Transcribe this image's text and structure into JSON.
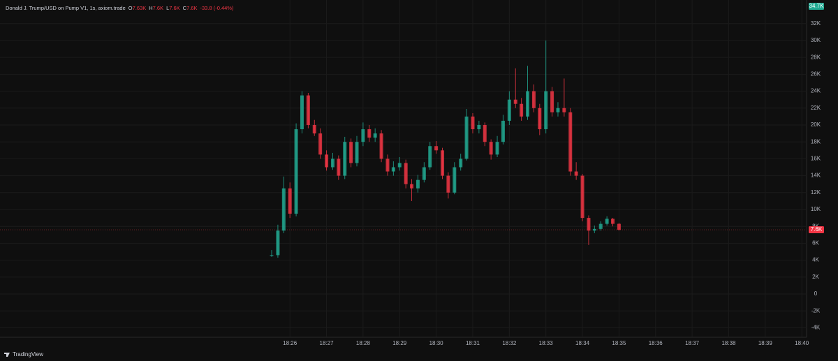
{
  "chart_data": {
    "type": "candlestick",
    "title": "Donald J. Trump/USD on Pump V1, 1s, axiom.trade",
    "ohlc_legend": [
      {
        "label": "O",
        "value": "7.63K"
      },
      {
        "label": "H",
        "value": "7.6K"
      },
      {
        "label": "L",
        "value": "7.6K"
      },
      {
        "label": "C",
        "value": "7.6K"
      }
    ],
    "change": "-33.8 (-0.44%)",
    "top_badge": "34.7K",
    "last_price": {
      "value": 7600,
      "label": "7.6K"
    },
    "footer": "TradingView",
    "up_color": "#22ab94",
    "down_color": "#f23645",
    "grid": true,
    "x": [
      1105.5,
      1105.67,
      1105.83,
      1106,
      1106.17,
      1106.33,
      1106.5,
      1106.67,
      1106.83,
      1107,
      1107.17,
      1107.33,
      1107.5,
      1107.67,
      1107.83,
      1108,
      1108.17,
      1108.33,
      1108.5,
      1108.67,
      1108.83,
      1109,
      1109.17,
      1109.33,
      1109.5,
      1109.67,
      1109.83,
      1110,
      1110.17,
      1110.33,
      1110.5,
      1110.67,
      1110.83,
      1111,
      1111.17,
      1111.33,
      1111.5,
      1111.67,
      1111.83,
      1112,
      1112.17,
      1112.33,
      1112.5,
      1112.67,
      1112.83,
      1113,
      1113.17,
      1113.33,
      1113.5,
      1113.67,
      1113.83,
      1114,
      1114.17,
      1114.33,
      1114.5,
      1114.67,
      1114.83,
      1115
    ],
    "open": [
      4500,
      4600,
      7500,
      12500,
      9500,
      19500,
      23500,
      20000,
      19000,
      16500,
      15000,
      16000,
      14000,
      18000,
      15500,
      18000,
      19500,
      18500,
      19000,
      16000,
      14500,
      15000,
      15500,
      13000,
      12500,
      13500,
      15000,
      17500,
      17000,
      14000,
      12000,
      15000,
      16000,
      21000,
      19500,
      20000,
      18000,
      16500,
      18000,
      20500,
      23000,
      22500,
      21000,
      24000,
      22000,
      19500,
      24000,
      21500,
      22000,
      21500,
      14500,
      14000,
      9000,
      7500,
      7700,
      8300,
      8900,
      8300
    ],
    "high": [
      5200,
      8200,
      13900,
      13200,
      20200,
      24000,
      23800,
      20600,
      19600,
      17000,
      16700,
      16400,
      18600,
      18400,
      18700,
      20300,
      20000,
      19600,
      19400,
      16500,
      15700,
      16200,
      15900,
      13600,
      14100,
      15600,
      18000,
      18100,
      17300,
      14400,
      15600,
      16600,
      21900,
      21400,
      20500,
      20300,
      18300,
      18700,
      21200,
      24000,
      26700,
      23200,
      27000,
      24800,
      22500,
      30000,
      24500,
      22700,
      25500,
      22000,
      15600,
      14200,
      9300,
      8100,
      8600,
      9200,
      9000,
      8400
    ],
    "low": [
      4400,
      4300,
      7200,
      9000,
      9200,
      19000,
      19600,
      18700,
      16000,
      14600,
      14700,
      13500,
      13600,
      15000,
      15100,
      17500,
      18000,
      18000,
      15600,
      14000,
      14000,
      14600,
      12500,
      11000,
      12000,
      13200,
      14700,
      16600,
      13600,
      11300,
      11800,
      14600,
      15800,
      19000,
      19000,
      17500,
      15900,
      16200,
      17700,
      20000,
      22000,
      20500,
      20600,
      21500,
      18800,
      19000,
      21000,
      21000,
      21000,
      14000,
      13500,
      8600,
      5800,
      7200,
      7500,
      8100,
      8000,
      7500
    ],
    "close": [
      4600,
      7500,
      12500,
      9500,
      19500,
      23500,
      20000,
      19000,
      16500,
      15000,
      16000,
      14000,
      18000,
      15500,
      18000,
      19500,
      18500,
      19000,
      16000,
      14500,
      15000,
      15500,
      13000,
      12500,
      13500,
      15000,
      17500,
      17000,
      14000,
      12000,
      15000,
      16000,
      21000,
      19500,
      20000,
      18000,
      16500,
      18000,
      20500,
      23000,
      22500,
      21000,
      24000,
      22000,
      19500,
      24000,
      21500,
      22000,
      21500,
      14500,
      14000,
      9000,
      7500,
      7700,
      8300,
      8900,
      8300,
      7600
    ],
    "xlim": [
      1098.07,
      1120.13
    ],
    "xticks": [
      {
        "value": 1106,
        "label": "18:26"
      },
      {
        "value": 1107,
        "label": "18:27"
      },
      {
        "value": 1108,
        "label": "18:28"
      },
      {
        "value": 1109,
        "label": "18:29"
      },
      {
        "value": 1110,
        "label": "18:30"
      },
      {
        "value": 1111,
        "label": "18:31"
      },
      {
        "value": 1112,
        "label": "18:32"
      },
      {
        "value": 1113,
        "label": "18:33"
      },
      {
        "value": 1114,
        "label": "18:34"
      },
      {
        "value": 1115,
        "label": "18:35"
      },
      {
        "value": 1116,
        "label": "18:36"
      },
      {
        "value": 1117,
        "label": "18:37"
      },
      {
        "value": 1118,
        "label": "18:38"
      },
      {
        "value": 1119,
        "label": "18:39"
      },
      {
        "value": 1120,
        "label": "18:40"
      }
    ],
    "ylim": [
      -5120,
      34790
    ],
    "yticks": [
      {
        "value": -4000,
        "label": "-4K"
      },
      {
        "value": -2000,
        "label": "-2K"
      },
      0,
      {
        "value": 2000,
        "label": "2K"
      },
      {
        "value": 4000,
        "label": "4K"
      },
      {
        "value": 6000,
        "label": "6K"
      },
      {
        "value": 8000,
        "label": "8K"
      },
      {
        "value": 10000,
        "label": "10K"
      },
      {
        "value": 12000,
        "label": "12K"
      },
      {
        "value": 14000,
        "label": "14K"
      },
      {
        "value": 16000,
        "label": "16K"
      },
      {
        "value": 18000,
        "label": "18K"
      },
      {
        "value": 20000,
        "label": "20K"
      },
      {
        "value": 22000,
        "label": "22K"
      },
      {
        "value": 24000,
        "label": "24K"
      },
      {
        "value": 26000,
        "label": "26K"
      },
      {
        "value": 28000,
        "label": "28K"
      },
      {
        "value": 30000,
        "label": "30K"
      },
      {
        "value": 32000,
        "label": "32K"
      }
    ]
  }
}
